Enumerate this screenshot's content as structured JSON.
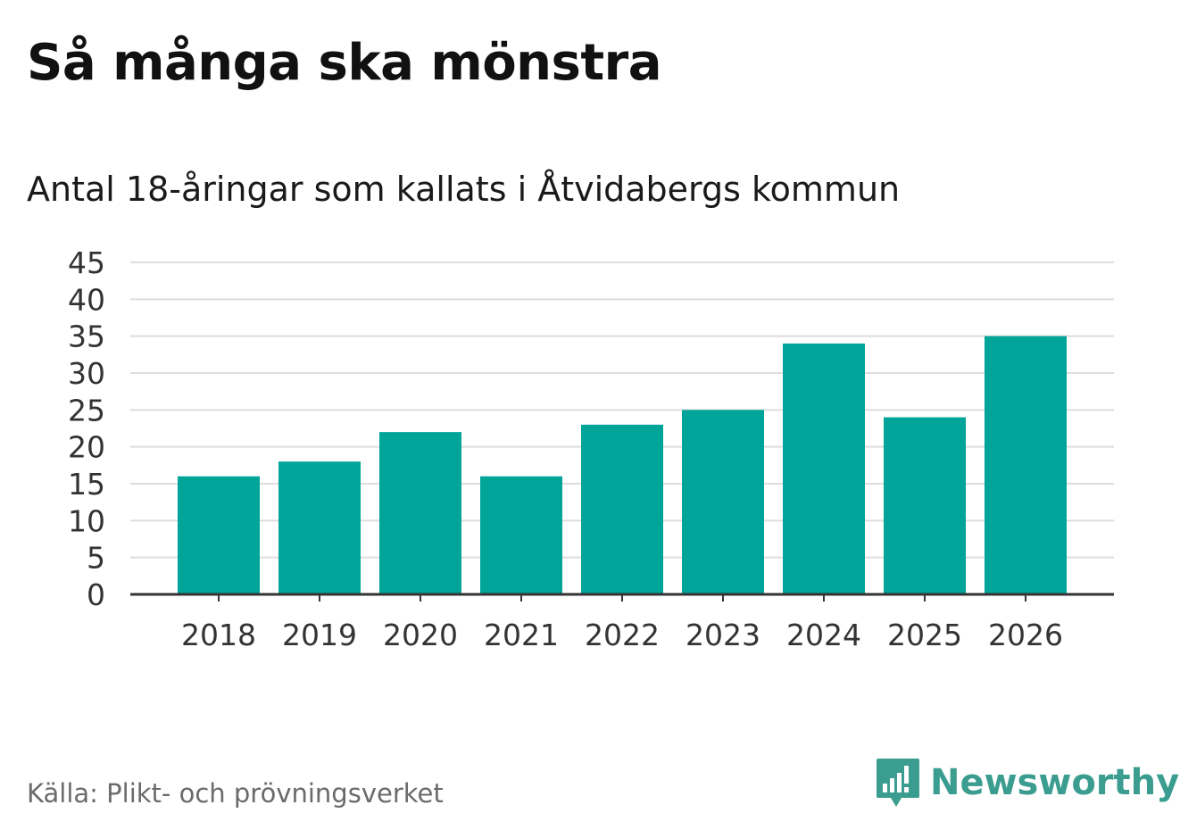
{
  "chart_data": {
    "type": "bar",
    "title": "Så många ska mönstra",
    "subtitle": "Antal 18-åringar som kallats i Åtvidabergs kommun",
    "categories": [
      "2018",
      "2019",
      "2020",
      "2021",
      "2022",
      "2023",
      "2024",
      "2025",
      "2026"
    ],
    "values": [
      16,
      18,
      22,
      16,
      23,
      25,
      34,
      24,
      35
    ],
    "yticks": [
      0,
      5,
      10,
      15,
      20,
      25,
      30,
      35,
      40,
      45
    ],
    "ylim": [
      0,
      45
    ],
    "xlabel": "",
    "ylabel": "",
    "grid": true,
    "bar_color": "#00a499"
  },
  "footer": {
    "source": "Källa: Plikt- och prövningsverket",
    "brand": "Newsworthy",
    "brand_color": "#3a9d8f",
    "brand_icon": "bar-chart-speech-bubble-icon"
  }
}
